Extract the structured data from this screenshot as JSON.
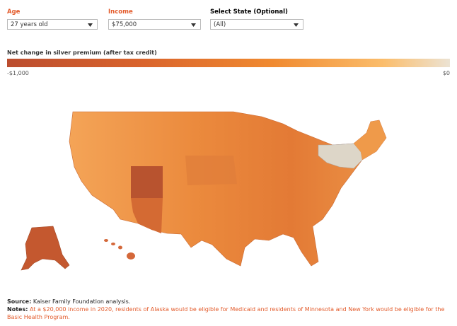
{
  "controls": [
    {
      "label": "Age",
      "value": "27 years old"
    },
    {
      "label": "Income",
      "value": "$75,000"
    },
    {
      "label": "Select State (Optional)",
      "value": "(All)"
    }
  ],
  "legend": {
    "title": "Net change in silver premium (after tax credit)",
    "min_label": "-$1,000",
    "max_label": "$0"
  },
  "footer": {
    "source": {
      "label": "Source:",
      "text": "Kaiser Family Foundation analysis."
    },
    "notes": {
      "label": "Notes:",
      "text": "At a $20,000 income in 2020, residents of Alaska would be eligible for Medicaid and residents of Minnesota and New York would be eligible for the Basic Health Program."
    }
  }
}
